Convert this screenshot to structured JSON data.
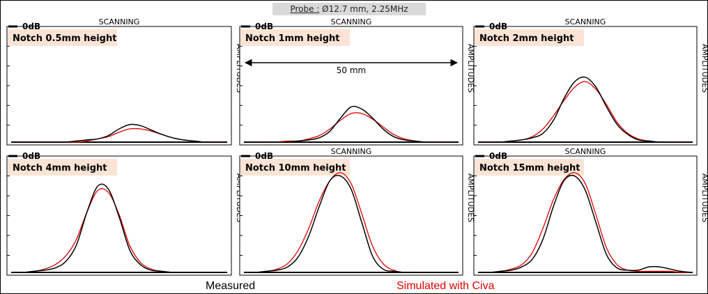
{
  "probe": {
    "label": "Probe :",
    "value": "Ø12.7 mm, 2.25MHz"
  },
  "legend": {
    "measured": "Measured",
    "simulated": "Simulated with Civa"
  },
  "colors": {
    "measured": "#000000",
    "simulated": "#e00000",
    "label_box": "#fbe4d5",
    "probe_box": "#d9d9d9"
  },
  "chart_data": [
    {
      "type": "line",
      "title": "Notch 0.5mm height",
      "xlabel": "SCANNING",
      "ylabel": "AMPLITUDES",
      "reference_label": "0dB",
      "x": [
        0,
        0.05,
        0.1,
        0.15,
        0.2,
        0.25,
        0.3,
        0.35,
        0.4,
        0.45,
        0.5,
        0.55,
        0.6,
        0.65,
        0.7,
        0.75,
        0.8,
        0.85,
        0.9,
        0.95,
        1.0
      ],
      "series": [
        {
          "name": "Measured",
          "values": [
            0.0,
            0.0,
            0.0,
            0.0,
            0.0,
            0.0,
            0.01,
            0.02,
            0.03,
            0.06,
            0.12,
            0.16,
            0.15,
            0.11,
            0.07,
            0.04,
            0.02,
            0.01,
            0.0,
            0.0,
            0.0
          ]
        },
        {
          "name": "Simulated with Civa",
          "values": [
            0.0,
            0.0,
            0.0,
            0.0,
            0.0,
            0.0,
            0.0,
            0.01,
            0.03,
            0.05,
            0.09,
            0.12,
            0.12,
            0.1,
            0.07,
            0.04,
            0.02,
            0.01,
            0.0,
            0.0,
            0.0
          ]
        }
      ],
      "annotations": []
    },
    {
      "type": "line",
      "title": "Notch 1mm height",
      "xlabel": "SCANNING",
      "ylabel": "AMPLITUDES",
      "reference_label": "0dB",
      "x": [
        0,
        0.05,
        0.1,
        0.15,
        0.2,
        0.25,
        0.3,
        0.35,
        0.4,
        0.45,
        0.5,
        0.55,
        0.6,
        0.65,
        0.7,
        0.75,
        0.8,
        0.85,
        0.9,
        0.95,
        1.0
      ],
      "series": [
        {
          "name": "Measured",
          "values": [
            0.0,
            0.0,
            0.0,
            0.0,
            0.0,
            0.01,
            0.02,
            0.04,
            0.1,
            0.22,
            0.32,
            0.3,
            0.22,
            0.12,
            0.05,
            0.02,
            0.01,
            0.0,
            0.0,
            0.0,
            0.0
          ]
        },
        {
          "name": "Simulated with Civa",
          "values": [
            0.0,
            0.0,
            0.0,
            0.0,
            0.01,
            0.01,
            0.03,
            0.06,
            0.12,
            0.2,
            0.26,
            0.26,
            0.21,
            0.14,
            0.07,
            0.03,
            0.01,
            0.0,
            0.0,
            0.0,
            0.0
          ]
        }
      ],
      "annotations": [
        {
          "type": "span-arrow",
          "text": "50 mm"
        }
      ]
    },
    {
      "type": "line",
      "title": "Notch 2mm height",
      "xlabel": "SCANNING",
      "ylabel": "AMPLITUDES",
      "reference_label": "0dB",
      "x": [
        0,
        0.05,
        0.1,
        0.15,
        0.2,
        0.25,
        0.3,
        0.35,
        0.4,
        0.45,
        0.5,
        0.55,
        0.6,
        0.65,
        0.7,
        0.75,
        0.8,
        0.85,
        0.9,
        0.95,
        1.0
      ],
      "series": [
        {
          "name": "Measured",
          "values": [
            0.0,
            0.0,
            0.0,
            0.01,
            0.02,
            0.04,
            0.08,
            0.2,
            0.4,
            0.55,
            0.59,
            0.5,
            0.32,
            0.16,
            0.07,
            0.02,
            0.01,
            0.0,
            0.0,
            0.0,
            0.0
          ]
        },
        {
          "name": "Simulated with Civa",
          "values": [
            0.0,
            0.0,
            0.0,
            0.01,
            0.02,
            0.05,
            0.12,
            0.24,
            0.38,
            0.5,
            0.55,
            0.48,
            0.34,
            0.18,
            0.08,
            0.03,
            0.01,
            0.0,
            0.0,
            0.0,
            0.0
          ]
        }
      ],
      "annotations": []
    },
    {
      "type": "line",
      "title": "Notch 4mm height",
      "xlabel": "",
      "ylabel": "AMPLITUDES",
      "reference_label": "0dB",
      "x": [
        0,
        0.05,
        0.1,
        0.15,
        0.2,
        0.25,
        0.3,
        0.35,
        0.4,
        0.45,
        0.5,
        0.55,
        0.6,
        0.65,
        0.7,
        0.75,
        0.8,
        0.85,
        0.9,
        0.95,
        1.0
      ],
      "series": [
        {
          "name": "Measured",
          "values": [
            0.0,
            0.0,
            0.01,
            0.02,
            0.04,
            0.1,
            0.25,
            0.55,
            0.78,
            0.75,
            0.5,
            0.2,
            0.07,
            0.02,
            0.01,
            0.0,
            0.0,
            0.0,
            0.0,
            0.0,
            0.0
          ]
        },
        {
          "name": "Simulated with Civa",
          "values": [
            0.0,
            0.0,
            0.01,
            0.03,
            0.07,
            0.15,
            0.3,
            0.55,
            0.74,
            0.72,
            0.52,
            0.24,
            0.09,
            0.03,
            0.01,
            0.0,
            0.0,
            0.0,
            0.0,
            0.0,
            0.0
          ]
        }
      ],
      "annotations": []
    },
    {
      "type": "line",
      "title": "Notch 10mm height",
      "xlabel": "SCANNING",
      "ylabel": "AMPLITUDES",
      "reference_label": "0dB",
      "x": [
        0,
        0.05,
        0.1,
        0.15,
        0.2,
        0.25,
        0.3,
        0.35,
        0.4,
        0.45,
        0.5,
        0.55,
        0.6,
        0.65,
        0.7,
        0.75,
        0.8,
        0.85,
        0.9,
        0.95,
        1.0
      ],
      "series": [
        {
          "name": "Measured",
          "values": [
            0.0,
            0.0,
            0.01,
            0.02,
            0.05,
            0.14,
            0.33,
            0.6,
            0.83,
            0.87,
            0.75,
            0.45,
            0.15,
            0.03,
            0.01,
            0.0,
            0.0,
            0.0,
            0.0,
            0.0,
            0.0
          ]
        },
        {
          "name": "Simulated with Civa",
          "values": [
            0.0,
            0.0,
            0.01,
            0.03,
            0.08,
            0.2,
            0.4,
            0.65,
            0.83,
            0.9,
            0.8,
            0.53,
            0.24,
            0.08,
            0.02,
            0.0,
            0.0,
            0.0,
            0.0,
            0.0,
            0.0
          ]
        }
      ],
      "annotations": []
    },
    {
      "type": "line",
      "title": "Notch 15mm height",
      "xlabel": "SCANNING",
      "ylabel": "AMPLITUDES",
      "reference_label": "0dB",
      "x": [
        0,
        0.05,
        0.1,
        0.15,
        0.2,
        0.25,
        0.3,
        0.35,
        0.4,
        0.45,
        0.5,
        0.55,
        0.6,
        0.65,
        0.7,
        0.75,
        0.8,
        0.85,
        0.9,
        0.95,
        1.0
      ],
      "series": [
        {
          "name": "Measured",
          "values": [
            0.0,
            0.0,
            0.01,
            0.02,
            0.05,
            0.12,
            0.3,
            0.6,
            0.83,
            0.87,
            0.74,
            0.45,
            0.16,
            0.04,
            0.02,
            0.02,
            0.05,
            0.05,
            0.03,
            0.01,
            0.0
          ]
        },
        {
          "name": "Simulated with Civa",
          "values": [
            0.0,
            0.0,
            0.01,
            0.03,
            0.07,
            0.18,
            0.4,
            0.66,
            0.84,
            0.9,
            0.8,
            0.52,
            0.22,
            0.07,
            0.02,
            0.01,
            0.01,
            0.01,
            0.01,
            0.0,
            0.0
          ]
        }
      ],
      "annotations": []
    }
  ]
}
